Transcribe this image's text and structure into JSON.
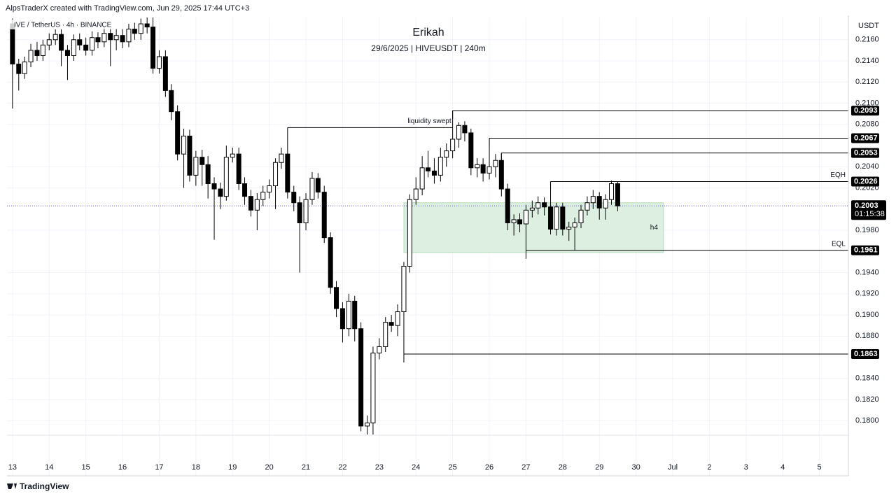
{
  "header": {
    "credit": "AlpsTraderX created with TradingView.com, Jun 29, 2025 17:44 UTC+3",
    "symbol": "IVE / TetherUS · 4h · BINANCE",
    "brand": "TradingView"
  },
  "chart_data": {
    "type": "candlestick",
    "title": "Erikah",
    "subtitle": "29/6/2025 | HIVEUSDT | 240m",
    "y_unit": "USDT",
    "grid": true,
    "up_color": "#ffffff",
    "down_color": "#000000",
    "border_color": "#000000",
    "x": [
      13,
      13.17,
      13.33,
      13.5,
      13.67,
      13.83,
      14,
      14.17,
      14.33,
      14.5,
      14.67,
      14.83,
      15,
      15.17,
      15.33,
      15.5,
      15.67,
      15.83,
      16,
      16.17,
      16.33,
      16.5,
      16.67,
      16.83,
      17,
      17.17,
      17.33,
      17.5,
      17.67,
      17.83,
      18,
      18.17,
      18.33,
      18.5,
      18.67,
      18.83,
      19,
      19.17,
      19.33,
      19.5,
      19.67,
      19.83,
      20,
      20.17,
      20.33,
      20.5,
      20.67,
      20.83,
      21,
      21.17,
      21.33,
      21.5,
      21.67,
      21.83,
      22,
      22.17,
      22.33,
      22.5,
      22.67,
      22.83,
      23,
      23.17,
      23.33,
      23.5,
      23.67,
      23.83,
      24,
      24.17,
      24.33,
      24.5,
      24.67,
      24.83,
      25,
      25.17,
      25.33,
      25.5,
      25.67,
      25.83,
      26,
      26.17,
      26.33,
      26.5,
      26.67,
      26.83,
      27,
      27.17,
      27.33,
      27.5,
      27.67,
      27.83,
      28,
      28.17,
      28.33,
      28.5,
      28.67,
      28.83,
      29,
      29.17,
      29.33,
      29.5
    ],
    "open": [
      0.2175,
      0.2137,
      0.2128,
      0.2139,
      0.215,
      0.2145,
      0.2155,
      0.216,
      0.2165,
      0.215,
      0.2145,
      0.216,
      0.2155,
      0.215,
      0.2162,
      0.2158,
      0.2166,
      0.216,
      0.2164,
      0.2158,
      0.217,
      0.2166,
      0.2175,
      0.2172,
      0.2133,
      0.2144,
      0.2112,
      0.2092,
      0.2052,
      0.2069,
      0.2032,
      0.2049,
      0.2042,
      0.2024,
      0.2019,
      0.2012,
      0.2049,
      0.2052,
      0.2024,
      0.2012,
      0.1999,
      0.2009,
      0.2016,
      0.2022,
      0.2044,
      0.2052,
      0.2016,
      0.2006,
      0.1987,
      0.2009,
      0.2029,
      0.2016,
      0.1973,
      0.1926,
      0.1906,
      0.1887,
      0.1913,
      0.1887,
      0.1795,
      0.1798,
      0.1864,
      0.187,
      0.1893,
      0.189,
      0.1903,
      0.1946,
      0.2009,
      0.2019,
      0.2039,
      0.2036,
      0.2032,
      0.2049,
      0.2055,
      0.2066,
      0.2079,
      0.2072,
      0.2039,
      0.2042,
      0.2034,
      0.204,
      0.2046,
      0.2019,
      0.1987,
      0.199,
      0.1986,
      0.1999,
      0.2001,
      0.2006,
      0.2002,
      0.1981,
      0.2002,
      0.1981,
      0.1983,
      0.1987,
      0.1999,
      0.2006,
      0.2012,
      0.2001,
      0.2009,
      0.2024
    ],
    "high": [
      0.218,
      0.2142,
      0.2144,
      0.2156,
      0.2158,
      0.216,
      0.2166,
      0.217,
      0.217,
      0.2155,
      0.2165,
      0.2166,
      0.2162,
      0.2168,
      0.2167,
      0.2172,
      0.2171,
      0.217,
      0.217,
      0.2175,
      0.2176,
      0.218,
      0.2182,
      0.2182,
      0.215,
      0.215,
      0.2118,
      0.2098,
      0.2076,
      0.2075,
      0.2055,
      0.2056,
      0.205,
      0.203,
      0.2025,
      0.206,
      0.2058,
      0.2058,
      0.203,
      0.2018,
      0.2015,
      0.2022,
      0.2028,
      0.2048,
      0.2058,
      0.2077,
      0.2022,
      0.2012,
      0.2015,
      0.2035,
      0.2034,
      0.2022,
      0.1978,
      0.1932,
      0.1912,
      0.192,
      0.1918,
      0.1893,
      0.1805,
      0.187,
      0.1878,
      0.1898,
      0.19,
      0.191,
      0.195,
      0.2014,
      0.203,
      0.205,
      0.2055,
      0.2048,
      0.2058,
      0.2062,
      0.2093,
      0.2082,
      0.2083,
      0.2076,
      0.2048,
      0.2048,
      0.2067,
      0.2052,
      0.2053,
      0.2024,
      0.1995,
      0.1996,
      0.2004,
      0.2008,
      0.2012,
      0.2011,
      0.2026,
      0.2006,
      0.2006,
      0.1988,
      0.1992,
      0.2004,
      0.2012,
      0.2018,
      0.2016,
      0.2014,
      0.2027,
      0.2026
    ],
    "low": [
      0.2095,
      0.2112,
      0.2123,
      0.2134,
      0.214,
      0.214,
      0.215,
      0.2155,
      0.2135,
      0.2122,
      0.214,
      0.215,
      0.2145,
      0.2145,
      0.2152,
      0.2153,
      0.2135,
      0.215,
      0.2152,
      0.2153,
      0.216,
      0.216,
      0.2166,
      0.2128,
      0.2128,
      0.2106,
      0.2084,
      0.2046,
      0.202,
      0.2026,
      0.2022,
      0.2022,
      0.201,
      0.1971,
      0.2,
      0.2008,
      0.2044,
      0.2018,
      0.2004,
      0.1993,
      0.198,
      0.2003,
      0.201,
      0.2,
      0.2038,
      0.201,
      0.1998,
      0.194,
      0.198,
      0.2004,
      0.201,
      0.1968,
      0.192,
      0.1898,
      0.1874,
      0.188,
      0.1875,
      0.179,
      0.1787,
      0.1787,
      0.1858,
      0.1865,
      0.1884,
      0.188,
      0.1863,
      0.194,
      0.2004,
      0.2013,
      0.203,
      0.2024,
      0.2026,
      0.204,
      0.2048,
      0.2058,
      0.2064,
      0.2032,
      0.203,
      0.2026,
      0.2028,
      0.203,
      0.2012,
      0.198,
      0.1975,
      0.1978,
      0.1961,
      0.1992,
      0.1995,
      0.1994,
      0.1976,
      0.1975,
      0.1975,
      0.197,
      0.1961,
      0.1982,
      0.1994,
      0.2,
      0.199,
      0.199,
      0.2004,
      0.1998
    ],
    "close": [
      0.2137,
      0.2128,
      0.2139,
      0.215,
      0.2145,
      0.2155,
      0.216,
      0.2165,
      0.215,
      0.2145,
      0.216,
      0.2155,
      0.215,
      0.2162,
      0.2158,
      0.2166,
      0.216,
      0.2164,
      0.2158,
      0.217,
      0.2166,
      0.2175,
      0.2172,
      0.2133,
      0.2144,
      0.2112,
      0.2092,
      0.2052,
      0.2069,
      0.2032,
      0.2049,
      0.2042,
      0.2024,
      0.2019,
      0.2012,
      0.2049,
      0.2052,
      0.2024,
      0.2012,
      0.1999,
      0.2009,
      0.2016,
      0.2022,
      0.2044,
      0.2052,
      0.2016,
      0.2006,
      0.1987,
      0.2009,
      0.2029,
      0.2016,
      0.1973,
      0.1926,
      0.1906,
      0.1887,
      0.1913,
      0.1887,
      0.1795,
      0.1798,
      0.1864,
      0.187,
      0.1893,
      0.189,
      0.1903,
      0.1946,
      0.2009,
      0.2019,
      0.2039,
      0.2036,
      0.2032,
      0.2049,
      0.2055,
      0.2066,
      0.2079,
      0.2072,
      0.2039,
      0.2042,
      0.2034,
      0.204,
      0.2046,
      0.2019,
      0.1987,
      0.199,
      0.1986,
      0.1999,
      0.2001,
      0.2006,
      0.2002,
      0.1981,
      0.2002,
      0.1981,
      0.1983,
      0.1987,
      0.1999,
      0.2006,
      0.2012,
      0.2001,
      0.2009,
      0.2024,
      0.2003
    ],
    "xlim": [
      12.85,
      35.79
    ],
    "xticks": [
      13,
      14,
      15,
      16,
      17,
      18,
      19,
      20,
      21,
      22,
      23,
      24,
      25,
      26,
      27,
      28,
      29,
      30,
      {
        "value": 31,
        "label": "Jul"
      },
      {
        "value": 32,
        "label": "2"
      },
      {
        "value": 33,
        "label": "3"
      },
      {
        "value": 34,
        "label": "4"
      },
      {
        "value": 35,
        "label": "5"
      }
    ],
    "ylim": [
      0.1748,
      0.2181
    ],
    "yticks": [
      {
        "value": 0.216,
        "label": "0.2160"
      },
      {
        "value": 0.214,
        "label": "0.2140"
      },
      {
        "value": 0.212,
        "label": "0.2120"
      },
      {
        "value": 0.21,
        "label": "0.2100"
      },
      {
        "value": 0.208,
        "label": "0.2080"
      },
      {
        "value": 0.204,
        "label": "0.2040"
      },
      {
        "value": 0.202,
        "label": "0.2020"
      },
      {
        "value": 0.198,
        "label": "0.1980"
      },
      {
        "value": 0.194,
        "label": "0.1940"
      },
      {
        "value": 0.192,
        "label": "0.1920"
      },
      {
        "value": 0.19,
        "label": "0.1900"
      },
      {
        "value": 0.188,
        "label": "0.1880"
      },
      {
        "value": 0.184,
        "label": "0.1840"
      },
      {
        "value": 0.182,
        "label": "0.1820"
      },
      {
        "value": 0.18,
        "label": "0.1800"
      }
    ],
    "levels": [
      {
        "price": 0.2093,
        "start": 25
      },
      {
        "price": 0.2067,
        "start": 26
      },
      {
        "price": 0.2053,
        "start": 26.33
      },
      {
        "price": 0.2026,
        "start": 27.67,
        "note": "EQH"
      },
      {
        "price": 0.1961,
        "start": 27,
        "note": "EQL"
      },
      {
        "price": 0.1863,
        "start": 23.67
      }
    ],
    "swept": {
      "text": "liquidity swept",
      "price": 0.2077,
      "x": [
        20.5,
        25
      ]
    },
    "zone": {
      "label": "h4",
      "x": [
        23.67,
        30.75
      ],
      "price": [
        0.1959,
        0.2006
      ],
      "color": "#dcefe0"
    },
    "last": {
      "price": 0.2003,
      "countdown": "01:15:38"
    }
  }
}
